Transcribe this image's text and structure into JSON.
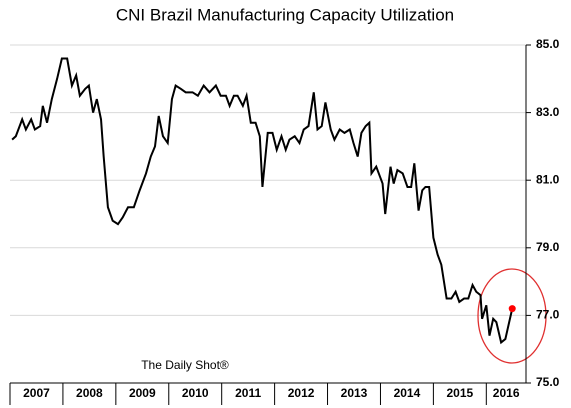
{
  "chart_data": {
    "type": "line",
    "title": "CNI Brazil Manufacturing Capacity Utilization",
    "annotation": "The Daily Shot®",
    "categories": [
      "2007",
      "2008",
      "2009",
      "2010",
      "2011",
      "2012",
      "2013",
      "2014",
      "2015",
      "2016"
    ],
    "xlim": [
      2007,
      2016.75
    ],
    "ylim": [
      75,
      85
    ],
    "yticks": [
      {
        "value": 75,
        "label": "75.0"
      },
      {
        "value": 77,
        "label": "77.0"
      },
      {
        "value": 79,
        "label": "79.0"
      },
      {
        "value": 81,
        "label": "81.0"
      },
      {
        "value": 83,
        "label": "83.0"
      },
      {
        "value": 85,
        "label": "85.0"
      }
    ],
    "grid": true,
    "series": [
      {
        "name": "Capacity Utilization",
        "color": "#000000",
        "highlight_color": "#ff0000",
        "x": [
          2007.04,
          2007.11,
          2007.23,
          2007.3,
          2007.4,
          2007.47,
          2007.57,
          2007.62,
          2007.7,
          2007.79,
          2007.89,
          2007.98,
          2008.08,
          2008.17,
          2008.25,
          2008.32,
          2008.42,
          2008.49,
          2008.57,
          2008.64,
          2008.72,
          2008.77,
          2008.85,
          2008.94,
          2009.04,
          2009.13,
          2009.23,
          2009.34,
          2009.45,
          2009.57,
          2009.66,
          2009.74,
          2009.81,
          2009.89,
          2009.98,
          2010.06,
          2010.13,
          2010.23,
          2010.32,
          2010.45,
          2010.55,
          2010.66,
          2010.77,
          2010.89,
          2010.98,
          2011.08,
          2011.15,
          2011.23,
          2011.3,
          2011.4,
          2011.47,
          2011.55,
          2011.64,
          2011.72,
          2011.77,
          2011.87,
          2011.96,
          2012.04,
          2012.13,
          2012.21,
          2012.28,
          2012.38,
          2012.47,
          2012.55,
          2012.64,
          2012.74,
          2012.81,
          2012.89,
          2012.96,
          2013.06,
          2013.13,
          2013.23,
          2013.32,
          2013.42,
          2013.49,
          2013.57,
          2013.64,
          2013.72,
          2013.79,
          2013.83,
          2013.92,
          2014.04,
          2014.09,
          2014.19,
          2014.25,
          2014.32,
          2014.42,
          2014.51,
          2014.58,
          2014.64,
          2014.72,
          2014.79,
          2014.85,
          2014.92,
          2015.0,
          2015.08,
          2015.15,
          2015.25,
          2015.34,
          2015.42,
          2015.49,
          2015.58,
          2015.66,
          2015.74,
          2015.81,
          2015.89,
          2015.92,
          2016.0,
          2016.06,
          2016.13,
          2016.19,
          2016.28,
          2016.36,
          2016.49
        ],
        "values": [
          82.2,
          82.3,
          82.8,
          82.5,
          82.8,
          82.5,
          82.6,
          83.2,
          82.7,
          83.4,
          84.0,
          84.6,
          84.6,
          83.8,
          84.1,
          83.5,
          83.7,
          83.8,
          83.0,
          83.4,
          82.8,
          81.7,
          80.2,
          79.8,
          79.7,
          79.9,
          80.2,
          80.2,
          80.7,
          81.2,
          81.7,
          82.0,
          82.9,
          82.3,
          82.1,
          83.4,
          83.8,
          83.7,
          83.6,
          83.6,
          83.5,
          83.8,
          83.6,
          83.8,
          83.5,
          83.5,
          83.2,
          83.5,
          83.5,
          83.2,
          83.5,
          82.7,
          82.7,
          82.3,
          80.8,
          82.4,
          82.4,
          81.9,
          82.3,
          81.9,
          82.2,
          82.3,
          82.1,
          82.5,
          82.6,
          83.6,
          82.5,
          82.6,
          83.3,
          82.5,
          82.2,
          82.5,
          82.4,
          82.5,
          82.1,
          81.7,
          82.4,
          82.6,
          82.7,
          81.2,
          81.4,
          80.9,
          80.0,
          81.4,
          80.9,
          81.3,
          81.2,
          80.8,
          80.8,
          81.5,
          80.1,
          80.7,
          80.8,
          80.8,
          79.3,
          78.8,
          78.5,
          77.5,
          77.5,
          77.7,
          77.4,
          77.5,
          77.5,
          77.9,
          77.7,
          77.6,
          76.9,
          77.3,
          76.4,
          76.9,
          76.8,
          76.2,
          76.3,
          77.2
        ]
      }
    ]
  }
}
